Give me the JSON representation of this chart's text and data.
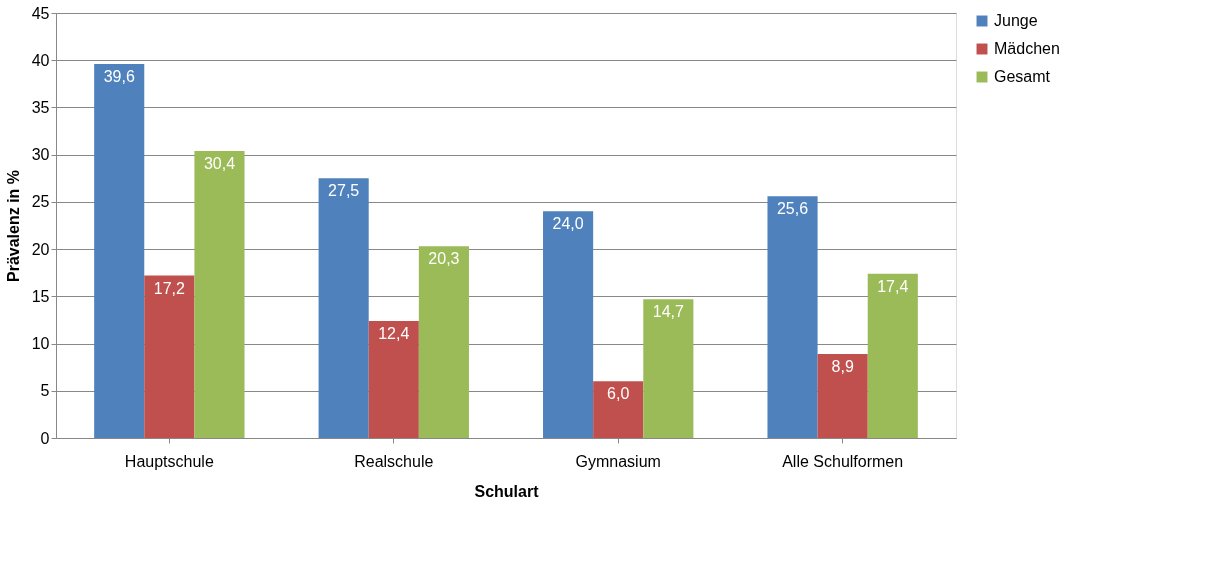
{
  "chart_data": {
    "type": "bar",
    "xlabel": "Schulart",
    "ylabel": "Prävalenz in %",
    "categories": [
      "Hauptschule",
      "Realschule",
      "Gymnasium",
      "Alle Schulformen"
    ],
    "series": [
      {
        "name": "Junge",
        "color": "#4f81bd",
        "values": [
          39.6,
          27.5,
          24.0,
          25.6
        ],
        "value_labels": [
          "39,6",
          "27,5",
          "24,0",
          "25,6"
        ]
      },
      {
        "name": "Mädchen",
        "color": "#c0504d",
        "values": [
          17.2,
          12.4,
          6.0,
          8.9
        ],
        "value_labels": [
          "17,2",
          "12,4",
          "6,0",
          "8,9"
        ]
      },
      {
        "name": "Gesamt",
        "color": "#9bbb59",
        "values": [
          30.4,
          20.3,
          14.7,
          17.4
        ],
        "value_labels": [
          "30,4",
          "20,3",
          "14,7",
          "17,4"
        ]
      }
    ],
    "ylim": [
      0,
      45
    ],
    "yticks": [
      0,
      5,
      10,
      15,
      20,
      25,
      30,
      35,
      40,
      45
    ],
    "grid": "y",
    "legend": "right"
  }
}
